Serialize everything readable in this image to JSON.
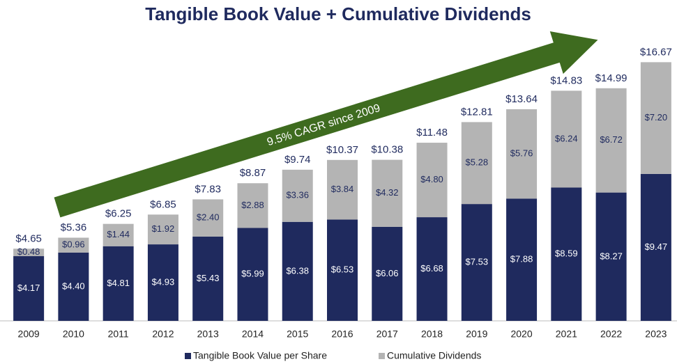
{
  "chart_data": {
    "type": "stacked_bar",
    "title": "Tangible Book Value + Cumulative Dividends",
    "annotation": "9.5% CAGR since 2009",
    "categories": [
      "2009",
      "2010",
      "2011",
      "2012",
      "2013",
      "2014",
      "2015",
      "2016",
      "2017",
      "2018",
      "2019",
      "2020",
      "2021",
      "2022",
      "2023"
    ],
    "series": [
      {
        "name": "Tangible Book Value per Share",
        "color": "#1f2a5e",
        "values": [
          4.17,
          4.4,
          4.81,
          4.93,
          5.43,
          5.99,
          6.38,
          6.53,
          6.06,
          6.68,
          7.53,
          7.88,
          8.59,
          8.27,
          9.47
        ],
        "value_labels": [
          "$4.17",
          "$4.40",
          "$4.81",
          "$4.93",
          "$5.43",
          "$5.99",
          "$6.38",
          "$6.53",
          "$6.06",
          "$6.68",
          "$7.53",
          "$7.88",
          "$8.59",
          "$8.27",
          "$9.47"
        ]
      },
      {
        "name": "Cumulative Dividends",
        "color": "#b4b4b4",
        "values": [
          0.48,
          0.96,
          1.44,
          1.92,
          2.4,
          2.88,
          3.36,
          3.84,
          4.32,
          4.8,
          5.28,
          5.76,
          6.24,
          6.72,
          7.2
        ],
        "value_labels": [
          "$0.48",
          "$0.96",
          "$1.44",
          "$1.92",
          "$2.40",
          "$2.88",
          "$3.36",
          "$3.84",
          "$4.32",
          "$4.80",
          "$5.28",
          "$5.76",
          "$6.24",
          "$6.72",
          "$7.20"
        ]
      }
    ],
    "totals": [
      4.65,
      5.36,
      6.25,
      6.85,
      7.83,
      8.87,
      9.74,
      10.37,
      10.38,
      11.48,
      12.81,
      13.64,
      14.83,
      14.99,
      16.67
    ],
    "total_labels": [
      "$4.65",
      "$5.36",
      "$6.25",
      "$6.85",
      "$7.83",
      "$8.87",
      "$9.74",
      "$10.37",
      "$10.38",
      "$11.48",
      "$12.81",
      "$13.64",
      "$14.83",
      "$14.99",
      "$16.67"
    ],
    "ylim": [
      0,
      17
    ]
  }
}
